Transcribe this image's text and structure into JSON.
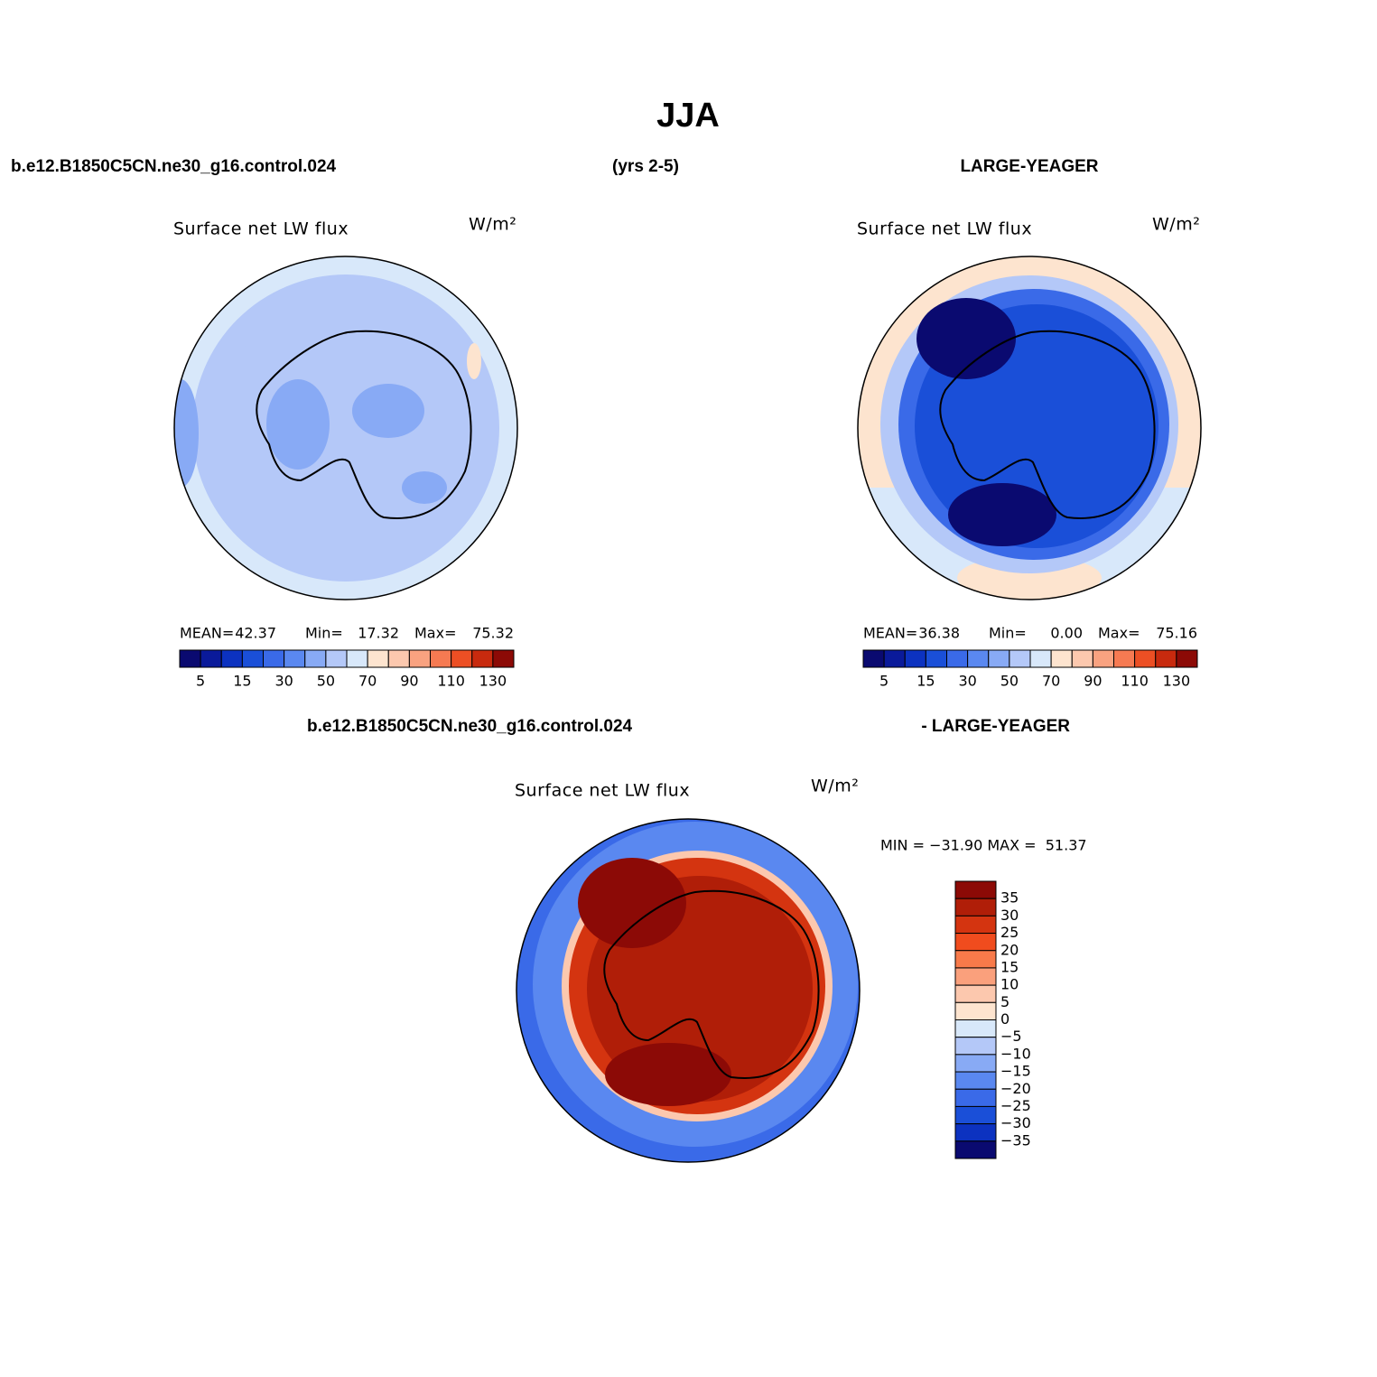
{
  "title": "JJA",
  "header": {
    "left": "b.e12.B1850C5CN.ne30_g16.control.024",
    "center": "(yrs 2-5)",
    "right": "LARGE-YEAGER"
  },
  "panels": [
    {
      "title": "Surface net LW flux",
      "units": "W/m²",
      "stats": [
        {
          "label": "MEAN=",
          "value": "42.37"
        },
        {
          "label": "Min=",
          "value": "17.32"
        },
        {
          "label": "Max=",
          "value": "75.32"
        }
      ]
    },
    {
      "title": "Surface net LW flux",
      "units": "W/m²",
      "stats": [
        {
          "label": "MEAN=",
          "value": "36.38"
        },
        {
          "label": "Min=",
          "value": "0.00"
        },
        {
          "label": "Max=",
          "value": "75.16"
        }
      ]
    }
  ],
  "colorbar": {
    "colors": [
      "#0a0a70",
      "#0a1a9a",
      "#0c32c0",
      "#1a4fd8",
      "#3a6ae8",
      "#5a88f0",
      "#88aaf5",
      "#b4c8f8",
      "#d8e8fa",
      "#fde4cf",
      "#fcc8ae",
      "#f9a280",
      "#f67a52",
      "#ec4f24",
      "#c82a0e",
      "#8c0a06"
    ],
    "labels": [
      "5",
      "15",
      "30",
      "50",
      "70",
      "90",
      "110",
      "130"
    ]
  },
  "difference": {
    "left": "b.e12.B1850C5CN.ne30_g16.control.024",
    "right": "- LARGE-YEAGER",
    "title": "Surface net LW flux",
    "units": "W/m²",
    "minmax": "MIN = −31.90 MAX =  51.37",
    "colorbar": {
      "colors": [
        "#8c0a06",
        "#b01e08",
        "#d43410",
        "#f04c1e",
        "#f87a4a",
        "#faa07c",
        "#fcc8ae",
        "#fde4cf",
        "#d8e8fa",
        "#b4c8f8",
        "#88aaf5",
        "#5a88f0",
        "#3a6ae8",
        "#1a4fd8",
        "#0c32c0",
        "#0a0a70"
      ],
      "labels": [
        "35",
        "30",
        "25",
        "20",
        "15",
        "10",
        "5",
        "0",
        "−5",
        "−10",
        "−15",
        "−20",
        "−25",
        "−30",
        "−35"
      ]
    }
  }
}
